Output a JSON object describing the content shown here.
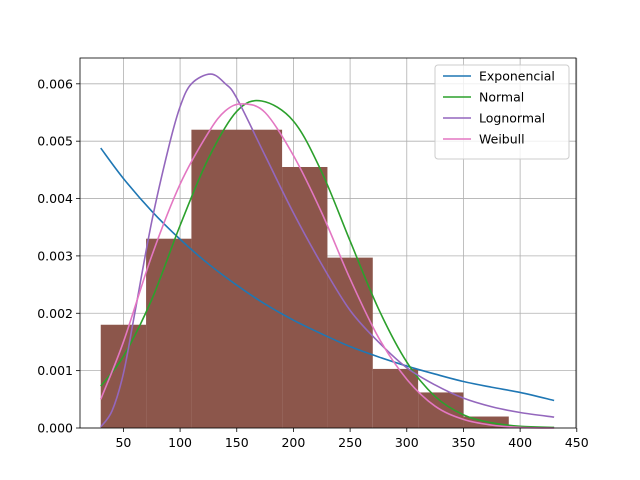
{
  "chart_data": {
    "type": "bar",
    "title": "",
    "xlabel": "",
    "ylabel": "",
    "xlim": [
      11.7,
      449.3
    ],
    "ylim": [
      0,
      0.00645
    ],
    "grid": true,
    "x_ticks": [
      50,
      100,
      150,
      200,
      250,
      300,
      350,
      400,
      450
    ],
    "x_tick_labels": [
      "50",
      "100",
      "150",
      "200",
      "250",
      "300",
      "350",
      "400",
      "450"
    ],
    "y_ticks": [
      0,
      0.001,
      0.002,
      0.003,
      0.004,
      0.005,
      0.006
    ],
    "y_tick_labels": [
      "0.000",
      "0.001",
      "0.002",
      "0.003",
      "0.004",
      "0.005",
      "0.006"
    ],
    "histogram": {
      "color": "#8c564b",
      "bins": [
        {
          "x0": 30,
          "x1": 70,
          "value": 0.0018
        },
        {
          "x0": 70,
          "x1": 110,
          "value": 0.0033
        },
        {
          "x0": 110,
          "x1": 190,
          "value": 0.0052
        },
        {
          "x0": 190,
          "x1": 230,
          "value": 0.00455
        },
        {
          "x0": 230,
          "x1": 270,
          "value": 0.00297
        },
        {
          "x0": 270,
          "x1": 310,
          "value": 0.00103
        },
        {
          "x0": 310,
          "x1": 350,
          "value": 0.00062
        },
        {
          "x0": 350,
          "x1": 390,
          "value": 0.0002
        }
      ]
    },
    "series": [
      {
        "name": "Exponencial",
        "color": "#1f77b4",
        "x": [
          30,
          50,
          75,
          100,
          125,
          150,
          175,
          200,
          225,
          250,
          275,
          300,
          325,
          350,
          375,
          400,
          430
        ],
        "y": [
          0.00488,
          0.00435,
          0.00378,
          0.00329,
          0.00286,
          0.00249,
          0.00216,
          0.00188,
          0.00164,
          0.00142,
          0.00124,
          0.00108,
          0.00094,
          0.00081,
          0.00071,
          0.00062,
          0.00048
        ]
      },
      {
        "name": "Normal",
        "color": "#2ca02c",
        "x": [
          30,
          50,
          75,
          100,
          125,
          150,
          172,
          200,
          225,
          250,
          275,
          300,
          325,
          350,
          375,
          400,
          430
        ],
        "y": [
          0.00073,
          0.00125,
          0.00224,
          0.00353,
          0.0047,
          0.00552,
          0.0057,
          0.00535,
          0.00446,
          0.00326,
          0.00208,
          0.00115,
          0.00055,
          0.00023,
          9e-05,
          3e-05,
          1e-05
        ]
      },
      {
        "name": "Lognormal",
        "color": "#9467bd",
        "x": [
          30,
          40,
          50,
          60,
          75,
          90,
          100,
          110,
          127,
          140,
          150,
          175,
          200,
          225,
          250,
          275,
          300,
          325,
          350,
          375,
          400,
          430
        ],
        "y": [
          2e-05,
          0.0003,
          0.00095,
          0.002,
          0.0036,
          0.0049,
          0.0056,
          0.006,
          0.00617,
          0.006,
          0.00575,
          0.00475,
          0.00375,
          0.00285,
          0.00205,
          0.0015,
          0.00105,
          0.00075,
          0.00052,
          0.00037,
          0.00027,
          0.00019
        ]
      },
      {
        "name": "Weibull",
        "color": "#e377c2",
        "x": [
          30,
          50,
          75,
          100,
          125,
          140,
          155,
          175,
          200,
          225,
          250,
          275,
          300,
          325,
          350,
          375,
          400,
          430
        ],
        "y": [
          0.0005,
          0.0015,
          0.003,
          0.00425,
          0.00515,
          0.00553,
          0.00565,
          0.0055,
          0.00475,
          0.00375,
          0.0026,
          0.00158,
          0.00085,
          0.00038,
          0.00015,
          5e-05,
          1e-05,
          0.0
        ]
      }
    ],
    "legend": {
      "position": "upper right",
      "entries": [
        "Exponencial",
        "Normal",
        "Lognormal",
        "Weibull"
      ]
    }
  }
}
